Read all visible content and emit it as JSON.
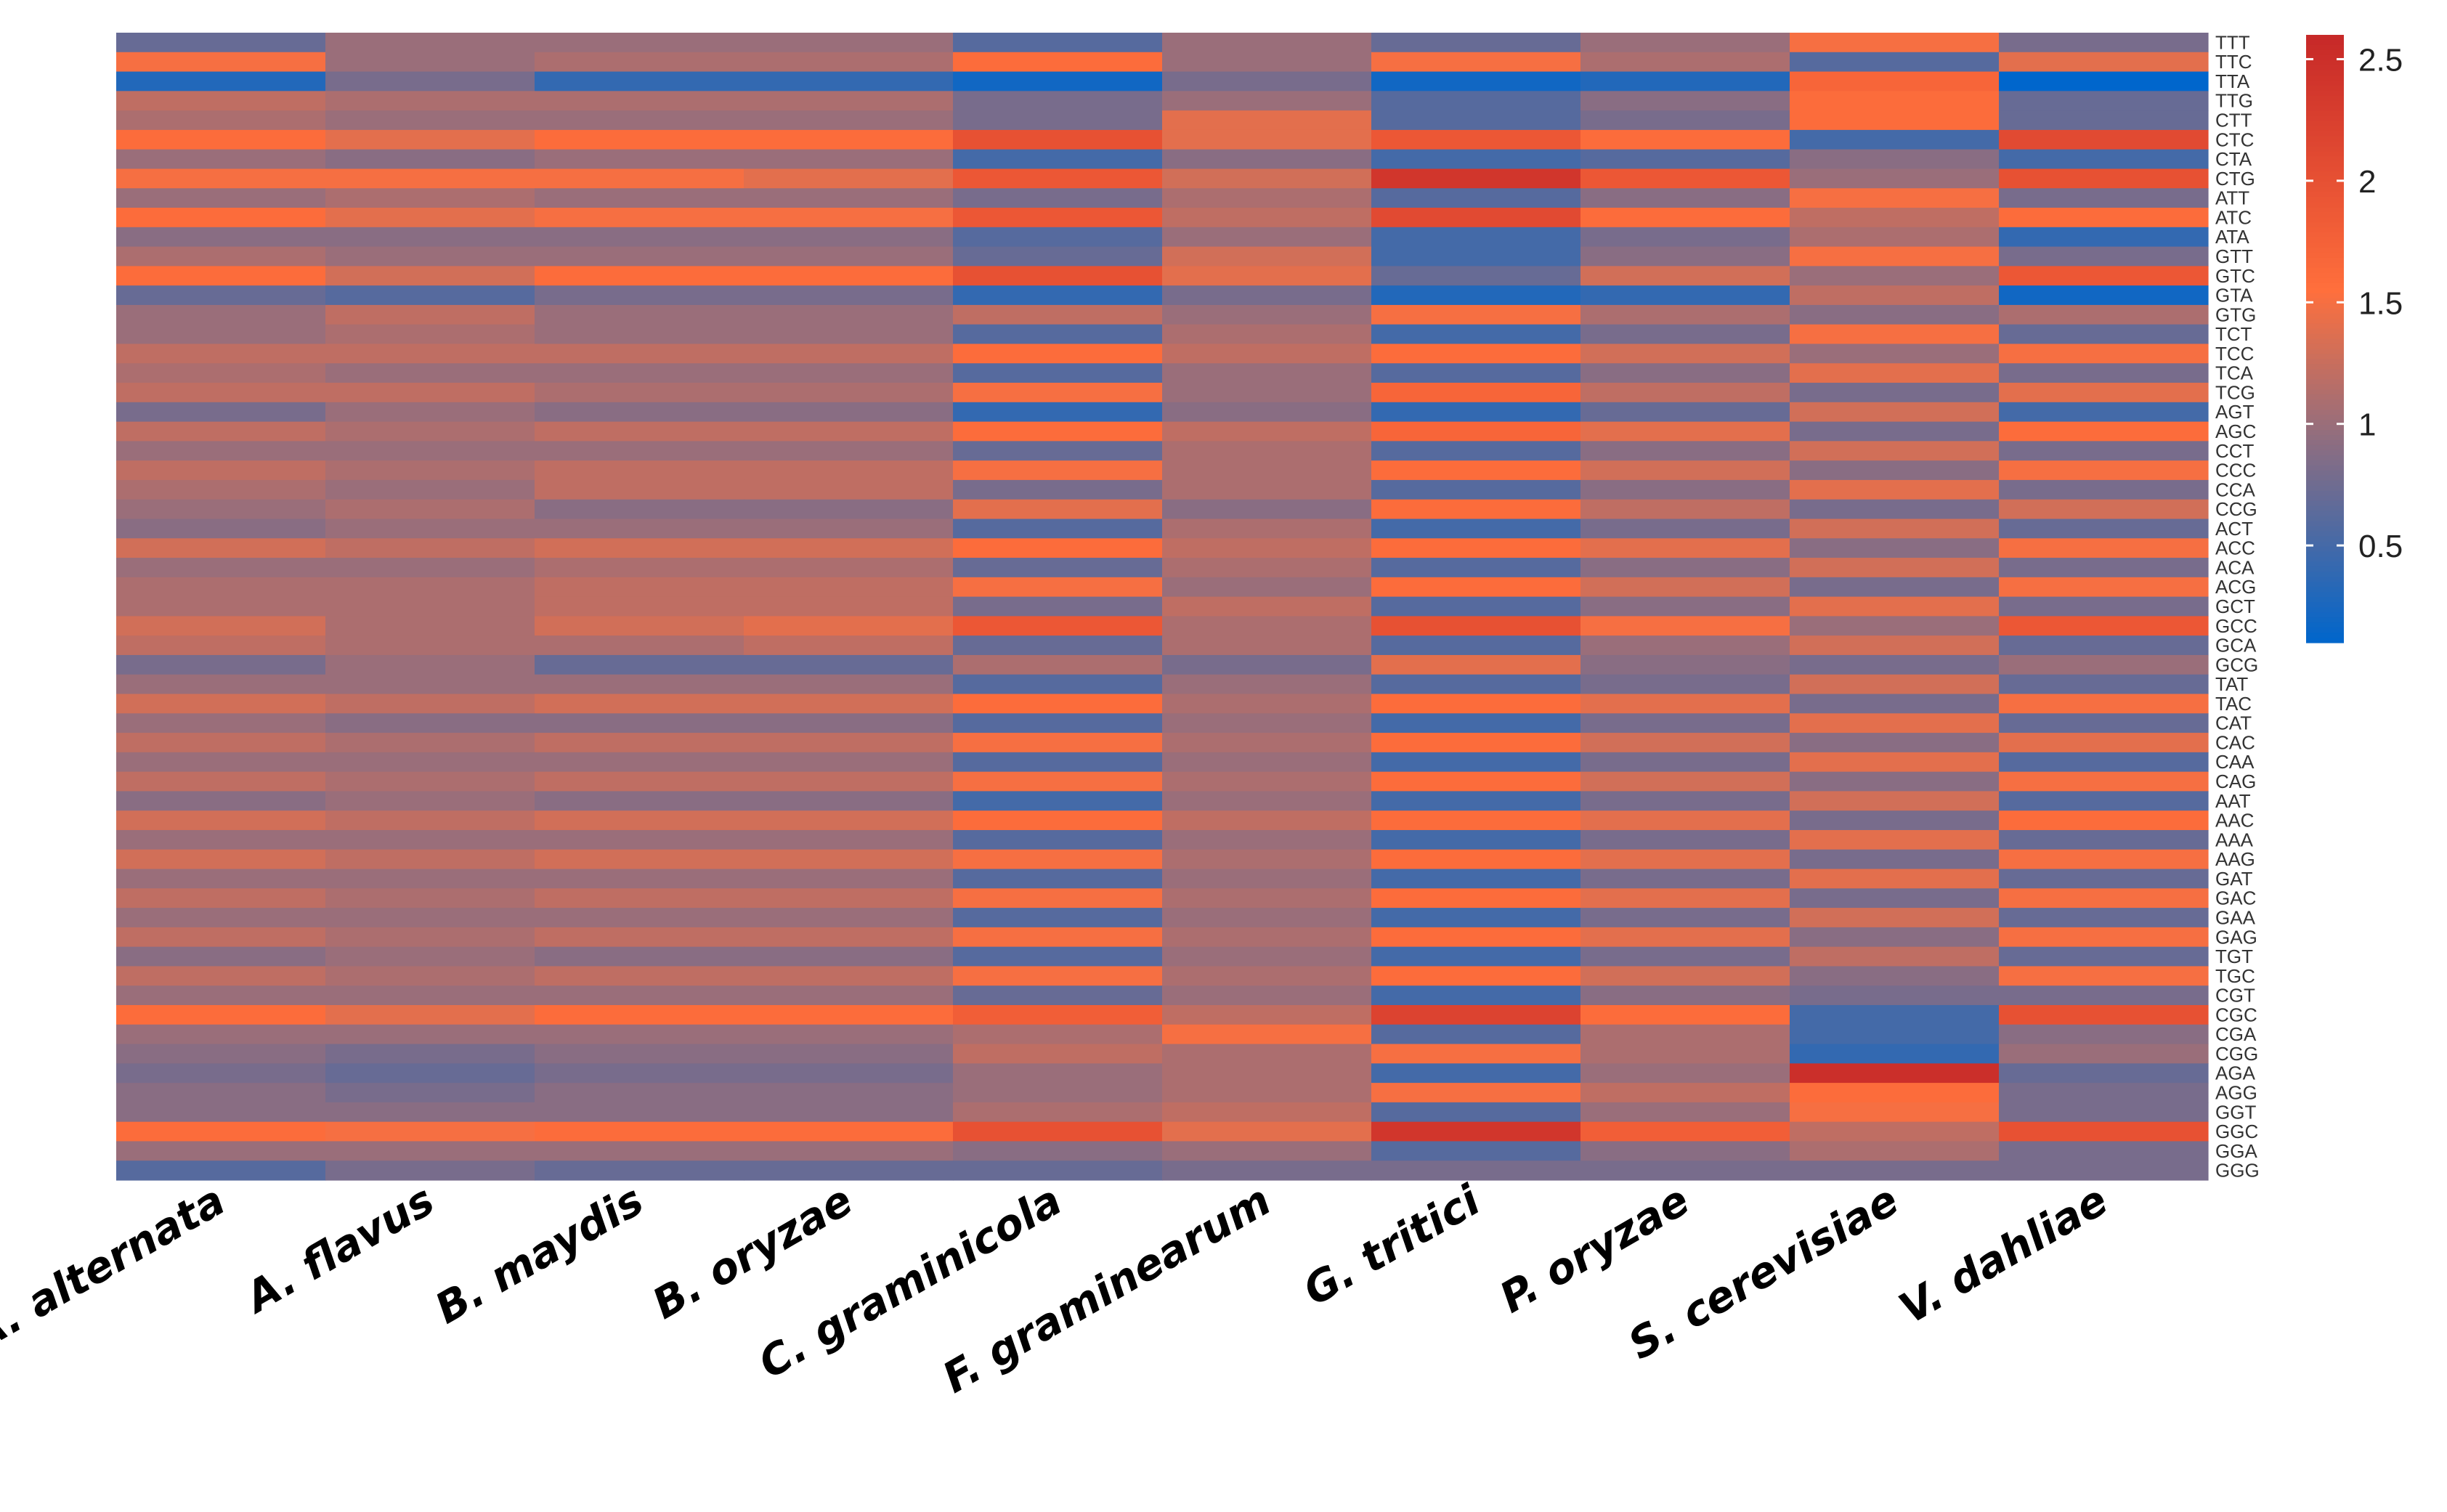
{
  "chart_data": {
    "type": "heatmap",
    "title": "",
    "colorscale": {
      "low_color": "#0066cc",
      "mid_color": "#9a6e7a",
      "high_color": "#ff6f3c",
      "top_color": "#c62828",
      "range": [
        0.1,
        2.6
      ],
      "ticks": [
        "0.5",
        "1",
        "1.5",
        "2",
        "2.5"
      ],
      "tick_values": [
        0.5,
        1,
        1.5,
        2,
        2.5
      ]
    },
    "columns": [
      "A. alternata",
      "A. flavus",
      "B. maydis",
      "B. oryzae",
      "C. graminicola",
      "F. graminearum",
      "G. tritici",
      "P. oryzae",
      "S. cerevisiae",
      "V. dahliae"
    ],
    "rows": [
      "TTT",
      "TTC",
      "TTA",
      "TTG",
      "CTT",
      "CTC",
      "CTA",
      "CTG",
      "ATT",
      "ATC",
      "ATA",
      "GTT",
      "GTC",
      "GTA",
      "GTG",
      "TCT",
      "TCC",
      "TCA",
      "TCG",
      "AGT",
      "AGC",
      "CCT",
      "CCC",
      "CCA",
      "CCG",
      "ACT",
      "ACC",
      "ACA",
      "ACG",
      "GCT",
      "GCC",
      "GCA",
      "GCG",
      "TAT",
      "TAC",
      "CAT",
      "CAC",
      "CAA",
      "CAG",
      "AAT",
      "AAC",
      "AAA",
      "AAG",
      "GAT",
      "GAC",
      "GAA",
      "GAG",
      "TGT",
      "TGC",
      "CGT",
      "CGC",
      "CGA",
      "CGG",
      "AGA",
      "AGG",
      "GGT",
      "GGC",
      "GGA",
      "GGG"
    ],
    "values": [
      [
        0.7,
        1.0,
        1.0,
        1.0,
        0.6,
        1.0,
        0.7,
        1.0,
        1.5,
        0.8
      ],
      [
        1.5,
        1.0,
        1.1,
        1.1,
        1.6,
        1.0,
        1.5,
        1.1,
        0.6,
        1.4
      ],
      [
        0.3,
        0.8,
        0.4,
        0.4,
        0.2,
        0.8,
        0.2,
        0.3,
        1.7,
        0.1
      ],
      [
        1.2,
        1.1,
        1.1,
        1.1,
        0.8,
        1.0,
        0.6,
        0.9,
        1.6,
        0.7
      ],
      [
        1.1,
        1.0,
        1.0,
        1.0,
        0.8,
        1.4,
        0.6,
        0.8,
        1.6,
        0.7
      ],
      [
        1.6,
        1.4,
        1.6,
        1.6,
        2.0,
        1.4,
        1.9,
        1.6,
        0.5,
        2.1
      ],
      [
        1.0,
        0.9,
        1.0,
        1.0,
        0.5,
        0.9,
        0.5,
        0.6,
        0.9,
        0.5
      ],
      [
        1.5,
        1.5,
        1.5,
        1.4,
        1.9,
        1.3,
        2.4,
        1.9,
        1.0,
        2.0
      ],
      [
        1.0,
        1.1,
        1.0,
        1.0,
        0.8,
        1.1,
        0.6,
        0.9,
        1.5,
        0.8
      ],
      [
        1.6,
        1.4,
        1.5,
        1.5,
        1.9,
        1.2,
        2.1,
        1.6,
        1.2,
        1.6
      ],
      [
        0.9,
        0.9,
        0.9,
        0.9,
        0.6,
        1.0,
        0.5,
        0.8,
        1.1,
        0.4
      ],
      [
        1.1,
        1.0,
        1.0,
        1.0,
        0.7,
        1.3,
        0.5,
        0.9,
        1.5,
        0.8
      ],
      [
        1.6,
        1.3,
        1.6,
        1.6,
        2.0,
        1.4,
        0.7,
        1.3,
        1.0,
        1.9
      ],
      [
        0.7,
        0.6,
        0.8,
        0.8,
        0.4,
        0.8,
        0.3,
        0.4,
        1.2,
        0.2
      ],
      [
        1.0,
        1.2,
        1.0,
        1.0,
        1.2,
        1.0,
        1.5,
        1.1,
        0.9,
        1.1
      ],
      [
        1.0,
        1.1,
        1.0,
        1.0,
        0.6,
        1.1,
        0.5,
        0.8,
        1.5,
        0.7
      ],
      [
        1.2,
        1.2,
        1.2,
        1.2,
        1.6,
        1.2,
        1.6,
        1.3,
        1.0,
        1.5
      ],
      [
        1.1,
        1.0,
        1.0,
        1.0,
        0.6,
        1.0,
        0.6,
        0.9,
        1.4,
        0.8
      ],
      [
        1.2,
        1.2,
        1.1,
        1.1,
        1.5,
        1.0,
        1.7,
        1.2,
        0.8,
        1.4
      ],
      [
        0.8,
        1.0,
        0.9,
        0.9,
        0.4,
        0.9,
        0.4,
        0.7,
        1.3,
        0.5
      ],
      [
        1.2,
        1.1,
        1.2,
        1.2,
        1.6,
        1.2,
        1.7,
        1.4,
        0.8,
        1.6
      ],
      [
        1.0,
        1.0,
        1.0,
        1.0,
        0.7,
        1.1,
        0.6,
        0.9,
        1.3,
        0.8
      ],
      [
        1.2,
        1.1,
        1.2,
        1.2,
        1.5,
        1.1,
        1.6,
        1.3,
        0.9,
        1.5
      ],
      [
        1.1,
        1.0,
        1.2,
        1.2,
        0.8,
        1.1,
        0.6,
        0.9,
        1.4,
        0.8
      ],
      [
        1.0,
        1.1,
        0.9,
        0.9,
        1.4,
        0.9,
        1.6,
        1.2,
        0.8,
        1.3
      ],
      [
        0.9,
        1.0,
        1.0,
        1.0,
        0.6,
        1.1,
        0.5,
        0.8,
        1.3,
        0.7
      ],
      [
        1.3,
        1.2,
        1.3,
        1.3,
        1.6,
        1.2,
        1.6,
        1.4,
        0.9,
        1.5
      ],
      [
        1.0,
        1.0,
        1.1,
        1.1,
        0.7,
        1.1,
        0.6,
        0.9,
        1.3,
        0.8
      ],
      [
        1.1,
        1.1,
        1.2,
        1.2,
        1.5,
        1.0,
        1.6,
        1.3,
        0.8,
        1.5
      ],
      [
        1.1,
        1.1,
        1.2,
        1.2,
        0.8,
        1.2,
        0.6,
        0.9,
        1.4,
        0.8
      ],
      [
        1.3,
        1.1,
        1.3,
        1.4,
        1.9,
        1.1,
        2.0,
        1.5,
        1.0,
        1.9
      ],
      [
        1.2,
        1.1,
        1.1,
        1.2,
        0.7,
        1.1,
        0.6,
        1.0,
        1.3,
        0.7
      ],
      [
        0.8,
        1.0,
        0.7,
        0.7,
        1.1,
        0.8,
        1.4,
        0.9,
        0.8,
        1.0
      ],
      [
        1.0,
        1.0,
        1.0,
        1.0,
        0.6,
        1.0,
        0.6,
        0.8,
        1.3,
        0.7
      ],
      [
        1.3,
        1.2,
        1.3,
        1.3,
        1.6,
        1.1,
        1.6,
        1.4,
        0.8,
        1.5
      ],
      [
        1.0,
        0.9,
        0.9,
        0.9,
        0.6,
        1.0,
        0.5,
        0.8,
        1.4,
        0.7
      ],
      [
        1.2,
        1.1,
        1.2,
        1.2,
        1.5,
        1.1,
        1.6,
        1.3,
        0.9,
        1.4
      ],
      [
        1.0,
        1.0,
        1.0,
        1.0,
        0.6,
        1.0,
        0.5,
        0.8,
        1.4,
        0.6
      ],
      [
        1.2,
        1.1,
        1.2,
        1.2,
        1.5,
        1.1,
        1.6,
        1.3,
        0.9,
        1.5
      ],
      [
        0.9,
        1.0,
        0.9,
        0.9,
        0.5,
        1.0,
        0.5,
        0.8,
        1.3,
        0.6
      ],
      [
        1.3,
        1.2,
        1.3,
        1.3,
        1.6,
        1.2,
        1.6,
        1.4,
        0.8,
        1.6
      ],
      [
        1.0,
        1.0,
        1.0,
        1.0,
        0.6,
        1.0,
        0.5,
        0.8,
        1.4,
        0.7
      ],
      [
        1.3,
        1.2,
        1.3,
        1.3,
        1.5,
        1.1,
        1.6,
        1.4,
        0.8,
        1.5
      ],
      [
        1.0,
        1.0,
        1.0,
        1.0,
        0.6,
        1.0,
        0.5,
        0.8,
        1.4,
        0.7
      ],
      [
        1.2,
        1.1,
        1.2,
        1.2,
        1.5,
        1.1,
        1.6,
        1.4,
        0.8,
        1.5
      ],
      [
        1.0,
        1.0,
        1.0,
        1.0,
        0.6,
        1.0,
        0.5,
        0.8,
        1.3,
        0.7
      ],
      [
        1.2,
        1.1,
        1.2,
        1.2,
        1.5,
        1.1,
        1.6,
        1.4,
        0.9,
        1.5
      ],
      [
        0.9,
        1.0,
        0.9,
        0.9,
        0.6,
        1.0,
        0.5,
        0.8,
        1.2,
        0.7
      ],
      [
        1.2,
        1.1,
        1.2,
        1.2,
        1.5,
        1.1,
        1.6,
        1.3,
        0.9,
        1.5
      ],
      [
        1.0,
        1.0,
        1.0,
        1.0,
        0.7,
        1.0,
        0.5,
        0.9,
        0.8,
        0.8
      ],
      [
        1.6,
        1.4,
        1.6,
        1.6,
        1.8,
        1.2,
        2.2,
        1.6,
        0.5,
        2.0
      ],
      [
        1.0,
        1.0,
        1.0,
        1.0,
        1.1,
        1.5,
        0.6,
        1.1,
        0.5,
        0.9
      ],
      [
        0.9,
        0.8,
        0.9,
        0.9,
        1.2,
        1.1,
        1.5,
        1.1,
        0.4,
        1.0
      ],
      [
        0.8,
        0.7,
        0.8,
        0.8,
        1.0,
        1.1,
        0.5,
        1.0,
        2.5,
        0.7
      ],
      [
        0.9,
        0.8,
        0.9,
        0.9,
        1.0,
        1.1,
        1.5,
        1.2,
        1.6,
        0.8
      ],
      [
        0.9,
        0.9,
        0.9,
        0.9,
        1.1,
        1.2,
        0.6,
        1.0,
        1.5,
        0.8
      ],
      [
        1.6,
        1.5,
        1.6,
        1.6,
        2.0,
        1.4,
        2.4,
        1.8,
        1.2,
        2.0
      ],
      [
        1.0,
        1.0,
        1.0,
        1.0,
        0.9,
        1.0,
        0.6,
        0.9,
        1.1,
        0.8
      ],
      [
        0.6,
        0.8,
        0.7,
        0.7,
        0.7,
        0.8,
        0.8,
        0.8,
        0.8,
        0.8
      ]
    ]
  }
}
